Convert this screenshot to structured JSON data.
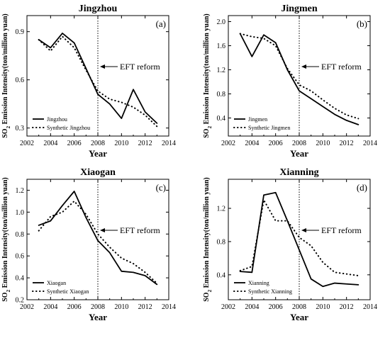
{
  "figure": {
    "reform_annotation": "EFT reform"
  },
  "chart_data": [
    {
      "type": "line",
      "title": "Jingzhou",
      "panel_label": "(a)",
      "xlabel": "Year",
      "ylabel": "SO2 Emission Intensity(ton/million yuan)",
      "ylabel_main": "SO",
      "ylabel_sub": "2",
      "ylabel_rest": " Emission Intensity(ton/million yuan)",
      "xlim": [
        2002,
        2014
      ],
      "ylim": [
        0.25,
        1.0
      ],
      "xticks": [
        2002,
        2004,
        2006,
        2008,
        2010,
        2012,
        2014
      ],
      "yticks": [
        0.3,
        0.6,
        0.9
      ],
      "ytick_labels": [
        "0.3",
        "0.6",
        "0.9"
      ],
      "reform_year": 2008,
      "legend_position": "bottom-left",
      "x": [
        2003,
        2004,
        2005,
        2006,
        2007,
        2008,
        2009,
        2010,
        2011,
        2012,
        2013
      ],
      "series": [
        {
          "name": "Jingzhou",
          "style": "solid",
          "values": [
            0.85,
            0.8,
            0.89,
            0.83,
            0.67,
            0.51,
            0.45,
            0.36,
            0.54,
            0.4,
            0.33
          ]
        },
        {
          "name": "Synthetic Jingzhou",
          "style": "dotted",
          "values": [
            0.85,
            0.78,
            0.87,
            0.8,
            0.66,
            0.53,
            0.48,
            0.46,
            0.43,
            0.38,
            0.31
          ]
        }
      ]
    },
    {
      "type": "line",
      "title": "Jingmen",
      "panel_label": "(b)",
      "xlabel": "Year",
      "ylabel": "SO2 Emission Intensity(ton/million yuan)",
      "ylabel_main": "SO",
      "ylabel_sub": "2",
      "ylabel_rest": " Emission Intensity(ton/million yuan)",
      "xlim": [
        2002,
        2014
      ],
      "ylim": [
        0.1,
        2.1
      ],
      "xticks": [
        2002,
        2004,
        2006,
        2008,
        2010,
        2012,
        2014
      ],
      "yticks": [
        0.4,
        0.8,
        1.2,
        1.6,
        2.0
      ],
      "ytick_labels": [
        "0.4",
        "0.8",
        "1.2",
        "1.6",
        "2.0"
      ],
      "reform_year": 2008,
      "legend_position": "bottom-left",
      "x": [
        2003,
        2004,
        2005,
        2006,
        2007,
        2008,
        2009,
        2010,
        2011,
        2012,
        2013
      ],
      "series": [
        {
          "name": "Jingmen",
          "style": "solid",
          "values": [
            1.8,
            1.42,
            1.78,
            1.65,
            1.2,
            0.85,
            0.72,
            0.59,
            0.46,
            0.36,
            0.29
          ]
        },
        {
          "name": "Synthetic Jingmen",
          "style": "dotted",
          "values": [
            1.8,
            1.75,
            1.72,
            1.6,
            1.22,
            0.95,
            0.85,
            0.7,
            0.56,
            0.45,
            0.39
          ]
        }
      ]
    },
    {
      "type": "line",
      "title": "Xiaogan",
      "panel_label": "(c)",
      "xlabel": "Year",
      "ylabel": "SO2 Emission Intensity(ton/million yuan)",
      "ylabel_main": "SO",
      "ylabel_sub": "2",
      "ylabel_rest": " Emission Intensity(ton/million yuan)",
      "xlim": [
        2002,
        2014
      ],
      "ylim": [
        0.2,
        1.3
      ],
      "xticks": [
        2002,
        2004,
        2006,
        2008,
        2010,
        2012,
        2014
      ],
      "yticks": [
        0.2,
        0.4,
        0.6,
        0.8,
        1.0,
        1.2
      ],
      "ytick_labels": [
        "0.2",
        "0.4",
        "0.6",
        "0.8",
        "1.0",
        "1.2"
      ],
      "reform_year": 2008,
      "legend_position": "bottom-left",
      "x": [
        2003,
        2004,
        2005,
        2006,
        2007,
        2008,
        2009,
        2010,
        2011,
        2012,
        2013
      ],
      "series": [
        {
          "name": "Xiaogan",
          "style": "solid",
          "values": [
            0.88,
            0.92,
            1.06,
            1.19,
            0.95,
            0.74,
            0.63,
            0.46,
            0.45,
            0.42,
            0.34
          ]
        },
        {
          "name": "Synthetic Xiaogan",
          "style": "dotted",
          "values": [
            0.83,
            0.96,
            1.0,
            1.1,
            0.98,
            0.8,
            0.68,
            0.58,
            0.53,
            0.45,
            0.35
          ]
        }
      ]
    },
    {
      "type": "line",
      "title": "Xianning",
      "panel_label": "(d)",
      "xlabel": "Year",
      "ylabel": "SO2 Emission Intensity(ton/million yuan)",
      "ylabel_main": "SO",
      "ylabel_sub": "2",
      "ylabel_rest": " Emission Intensity(ton/million yuan)",
      "xlim": [
        2002,
        2014
      ],
      "ylim": [
        0.1,
        1.55
      ],
      "xticks": [
        2002,
        2004,
        2006,
        2008,
        2010,
        2012,
        2014
      ],
      "yticks": [
        0.4,
        0.8,
        1.2
      ],
      "ytick_labels": [
        "0.4",
        "0.8",
        "1.2"
      ],
      "reform_year": 2008,
      "legend_position": "bottom-left",
      "x": [
        2003,
        2004,
        2005,
        2006,
        2007,
        2008,
        2009,
        2010,
        2011,
        2012,
        2013
      ],
      "series": [
        {
          "name": "Xianning",
          "style": "solid",
          "values": [
            0.44,
            0.43,
            1.36,
            1.39,
            1.05,
            0.7,
            0.35,
            0.26,
            0.3,
            0.29,
            0.28
          ]
        },
        {
          "name": "Synthetic Xianning",
          "style": "dotted",
          "values": [
            0.45,
            0.5,
            1.3,
            1.05,
            1.05,
            0.85,
            0.75,
            0.55,
            0.43,
            0.41,
            0.39
          ]
        }
      ]
    }
  ]
}
